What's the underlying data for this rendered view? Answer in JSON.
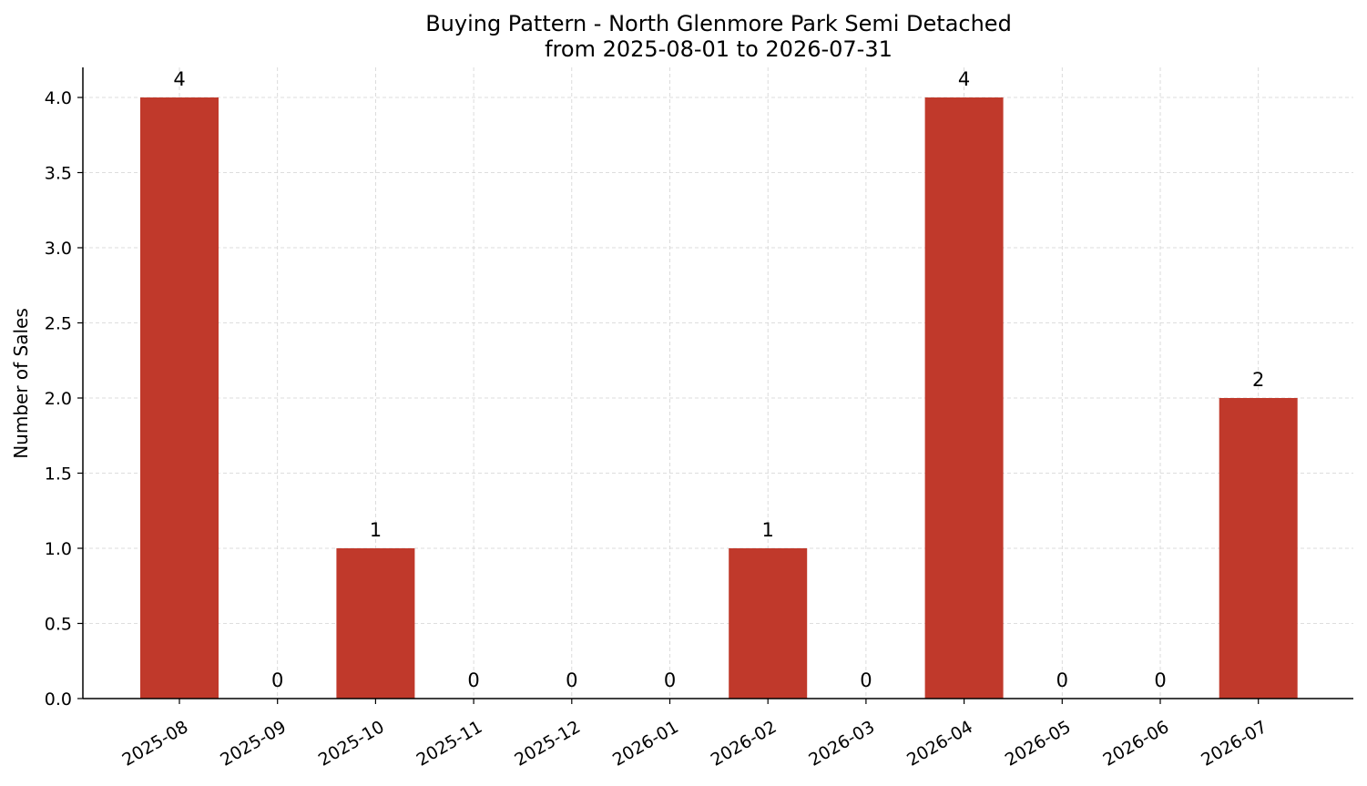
{
  "chart_data": {
    "type": "bar",
    "title": "Buying Pattern - North Glenmore Park Semi Detached",
    "subtitle": "from 2025-08-01 to 2026-07-31",
    "xlabel": "",
    "ylabel": "Number of Sales",
    "categories": [
      "2025-08",
      "2025-09",
      "2025-10",
      "2025-11",
      "2025-12",
      "2026-01",
      "2026-02",
      "2026-03",
      "2026-04",
      "2026-05",
      "2026-06",
      "2026-07"
    ],
    "values": [
      4,
      0,
      1,
      0,
      0,
      0,
      1,
      0,
      4,
      0,
      0,
      2
    ],
    "data_labels": [
      "4",
      "0",
      "1",
      "0",
      "0",
      "0",
      "1",
      "0",
      "4",
      "0",
      "0",
      "2"
    ],
    "ylim": [
      0,
      4.2
    ],
    "yticks": [
      "0.0",
      "0.5",
      "1.0",
      "1.5",
      "2.0",
      "2.5",
      "3.0",
      "3.5",
      "4.0"
    ],
    "grid": true,
    "bar_color": "#c0392b",
    "grid_color": "#d3d3d3"
  }
}
